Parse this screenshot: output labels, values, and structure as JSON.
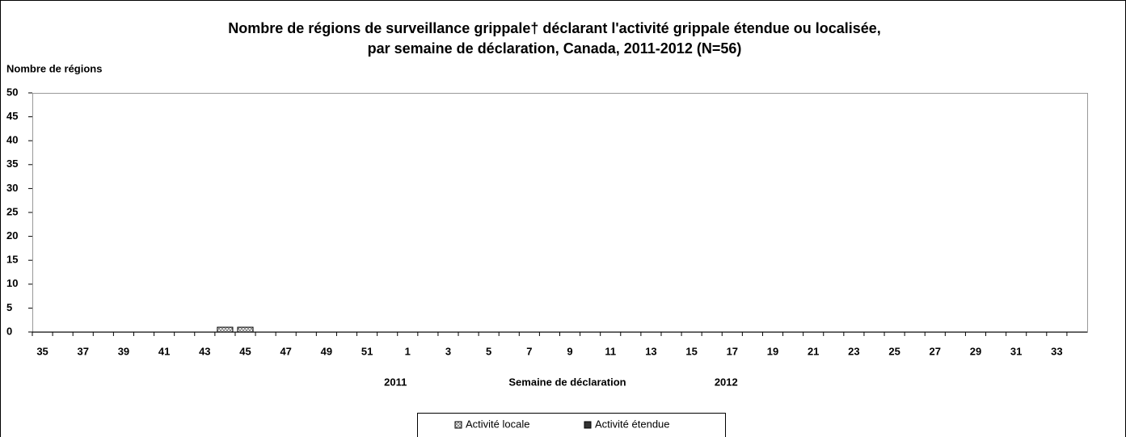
{
  "chart_data": {
    "type": "bar",
    "stacked": true,
    "title": [
      "Nombre de régions de surveillance grippale† déclarant l'activité grippale étendue ou localisée,",
      "par semaine de déclaration, Canada, 2011-2012 (N=56)"
    ],
    "y_label": "Nombre de régions",
    "x_label": "Semaine de déclaration",
    "year_labels": [
      "2011",
      "2012"
    ],
    "categories": [
      "35",
      null,
      "37",
      null,
      "39",
      null,
      "41",
      null,
      "43",
      null,
      "45",
      null,
      "47",
      null,
      "49",
      null,
      "51",
      null,
      "1",
      null,
      "3",
      null,
      "5",
      null,
      "7",
      null,
      "9",
      null,
      "11",
      null,
      "13",
      null,
      "15",
      null,
      "17",
      null,
      "19",
      null,
      "21",
      null,
      "23",
      null,
      "25",
      null,
      "27",
      null,
      "29",
      null,
      "31",
      null,
      "33",
      null
    ],
    "series": [
      {
        "name": "Activité locale",
        "color": "url(#checker)",
        "values": [
          0,
          0,
          0,
          0,
          0,
          0,
          0,
          0,
          0,
          1,
          1,
          0,
          0,
          0,
          0,
          0,
          0,
          0,
          0,
          0,
          0,
          0,
          0,
          0,
          0,
          0,
          0,
          0,
          0,
          0,
          0,
          0,
          0,
          0,
          0,
          0,
          0,
          0,
          0,
          0,
          0,
          0,
          0,
          0,
          0,
          0,
          0,
          0,
          0,
          0,
          0,
          0
        ]
      },
      {
        "name": "Activité étendue",
        "color": "#333333",
        "values": [
          0,
          0,
          0,
          0,
          0,
          0,
          0,
          0,
          0,
          0,
          0,
          0,
          0,
          0,
          0,
          0,
          0,
          0,
          0,
          0,
          0,
          0,
          0,
          0,
          0,
          0,
          0,
          0,
          0,
          0,
          0,
          0,
          0,
          0,
          0,
          0,
          0,
          0,
          0,
          0,
          0,
          0,
          0,
          0,
          0,
          0,
          0,
          0,
          0,
          0,
          0,
          0
        ]
      }
    ],
    "ylim": [
      0,
      50
    ],
    "yticks": [
      0,
      5,
      10,
      15,
      20,
      25,
      30,
      35,
      40,
      45,
      50
    ],
    "grid": false,
    "legend": "bottom"
  }
}
